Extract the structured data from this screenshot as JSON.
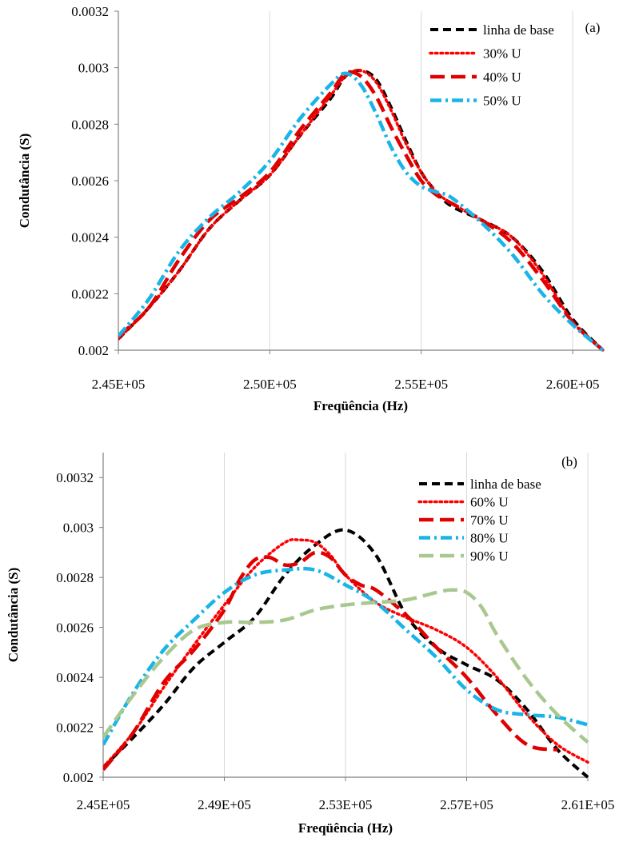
{
  "chart_data": [
    {
      "type": "line",
      "panel_label": "(a)",
      "title": "",
      "xlabel": "Freqüência (Hz)",
      "ylabel": "Condutância (S)",
      "xlim": [
        245000,
        261000
      ],
      "ylim": [
        0.002,
        0.0032
      ],
      "x_ticks": [
        245000,
        250000,
        255000,
        260000
      ],
      "x_tick_labels": [
        "2.45E+05",
        "2.50E+05",
        "2.55E+05",
        "2.60E+05"
      ],
      "y_ticks": [
        0.002,
        0.0022,
        0.0024,
        0.0026,
        0.0028,
        0.003,
        0.0032
      ],
      "y_tick_labels": [
        "0.002",
        "0.0022",
        "0.0024",
        "0.0026",
        "0.0028",
        "0.003",
        "0.0032"
      ],
      "grid": "vertical",
      "legend_position": "top-right",
      "series": [
        {
          "name": "linha de base",
          "color": "#000000",
          "style": "dash",
          "x": [
            245000,
            246000,
            247000,
            248000,
            249000,
            250000,
            251000,
            252000,
            252500,
            253000,
            253500,
            254000,
            254500,
            255000,
            255500,
            256000,
            257000,
            258000,
            259000,
            260000,
            261000
          ],
          "y": [
            0.00204,
            0.00215,
            0.00228,
            0.00243,
            0.00253,
            0.00262,
            0.00276,
            0.00289,
            0.00297,
            0.00299,
            0.00296,
            0.00286,
            0.00274,
            0.00263,
            0.00256,
            0.00251,
            0.00246,
            0.0024,
            0.00228,
            0.00211,
            0.002
          ]
        },
        {
          "name": "30% U",
          "color": "#ff0000",
          "style": "dot",
          "x": [
            245000,
            246000,
            247000,
            248000,
            249000,
            250000,
            251000,
            252000,
            252500,
            253000,
            253500,
            254000,
            254500,
            255000,
            255500,
            256000,
            257000,
            258000,
            259000,
            260000,
            261000
          ],
          "y": [
            0.00204,
            0.00215,
            0.00228,
            0.00243,
            0.00253,
            0.00262,
            0.00276,
            0.0029,
            0.00297,
            0.00299,
            0.00295,
            0.00285,
            0.00273,
            0.00263,
            0.00256,
            0.00252,
            0.00246,
            0.0024,
            0.00227,
            0.0021,
            0.002
          ]
        },
        {
          "name": "40% U",
          "color": "#e00000",
          "style": "longdash",
          "x": [
            245000,
            246000,
            247000,
            248000,
            249000,
            250000,
            251000,
            252000,
            252500,
            253000,
            253500,
            254000,
            254500,
            255000,
            255500,
            256000,
            257000,
            258000,
            259000,
            260000,
            261000
          ],
          "y": [
            0.00205,
            0.00215,
            0.00232,
            0.00246,
            0.00254,
            0.00263,
            0.00278,
            0.00291,
            0.00298,
            0.00297,
            0.0029,
            0.00279,
            0.00269,
            0.0026,
            0.00255,
            0.00252,
            0.00246,
            0.00238,
            0.00225,
            0.0021,
            0.002
          ]
        },
        {
          "name": "50% U",
          "color": "#19b4e8",
          "style": "dashdot",
          "x": [
            245000,
            246000,
            247000,
            248000,
            249000,
            250000,
            251000,
            252000,
            252500,
            253000,
            253500,
            254000,
            254500,
            255000,
            255500,
            256000,
            257000,
            258000,
            259000,
            260000,
            261000
          ],
          "y": [
            0.00205,
            0.00218,
            0.00235,
            0.00247,
            0.00256,
            0.00267,
            0.00282,
            0.00294,
            0.00298,
            0.00294,
            0.00284,
            0.00272,
            0.00263,
            0.00258,
            0.00256,
            0.00254,
            0.00245,
            0.00234,
            0.0022,
            0.00209,
            0.002
          ]
        }
      ]
    },
    {
      "type": "line",
      "panel_label": "(b)",
      "title": "",
      "xlabel": "Freqüência (Hz)",
      "ylabel": "Condutância (S)",
      "xlim": [
        245000,
        261000
      ],
      "ylim": [
        0.002,
        0.0033
      ],
      "x_ticks": [
        245000,
        249000,
        253000,
        257000,
        261000
      ],
      "x_tick_labels": [
        "2.45E+05",
        "2.49E+05",
        "2.53E+05",
        "2.57E+05",
        "2.61E+05"
      ],
      "y_ticks": [
        0.002,
        0.0022,
        0.0024,
        0.0026,
        0.0028,
        0.003,
        0.0032
      ],
      "y_tick_labels": [
        "0.002",
        "0.0022",
        "0.0024",
        "0.0026",
        "0.0028",
        "0.003",
        "0.0032"
      ],
      "grid": "vertical",
      "legend_position": "top-right",
      "series": [
        {
          "name": "linha de base",
          "color": "#000000",
          "style": "dash",
          "x": [
            245000,
            246000,
            247000,
            248000,
            249000,
            250000,
            251000,
            252000,
            253000,
            254000,
            255000,
            256000,
            257000,
            258000,
            259000,
            260000,
            261000
          ],
          "y": [
            0.00204,
            0.00216,
            0.00229,
            0.00244,
            0.00254,
            0.00264,
            0.00281,
            0.00293,
            0.00299,
            0.00289,
            0.00265,
            0.00252,
            0.00245,
            0.00239,
            0.00227,
            0.00211,
            0.002
          ]
        },
        {
          "name": "60% U",
          "color": "#ff0000",
          "style": "dot",
          "x": [
            245000,
            246000,
            247000,
            248000,
            249000,
            250000,
            251000,
            251500,
            252000,
            252500,
            253000,
            254000,
            255000,
            256000,
            257000,
            258000,
            259000,
            260000,
            261000
          ],
          "y": [
            0.00204,
            0.00218,
            0.00236,
            0.00253,
            0.00269,
            0.00284,
            0.00294,
            0.00295,
            0.00294,
            0.00289,
            0.00281,
            0.0027,
            0.00264,
            0.00259,
            0.00252,
            0.0024,
            0.00225,
            0.00213,
            0.00206
          ]
        },
        {
          "name": "70% U",
          "color": "#e00000",
          "style": "longdash",
          "x": [
            245000,
            246000,
            247000,
            248000,
            249000,
            249500,
            250000,
            250500,
            251000,
            251500,
            252000,
            252500,
            253000,
            253500,
            254000,
            255000,
            256000,
            257000,
            258000,
            259000,
            260000
          ],
          "y": [
            0.00203,
            0.00218,
            0.00238,
            0.00251,
            0.00267,
            0.00279,
            0.00287,
            0.00288,
            0.00285,
            0.00286,
            0.0029,
            0.00288,
            0.00281,
            0.00277,
            0.00275,
            0.00265,
            0.00252,
            0.0024,
            0.00225,
            0.00213,
            0.00211
          ]
        },
        {
          "name": "80% U",
          "color": "#19b4e8",
          "style": "dashdot",
          "x": [
            245000,
            246000,
            247000,
            248000,
            249000,
            250000,
            251000,
            252000,
            253000,
            254000,
            255000,
            256000,
            257000,
            258000,
            259000,
            260000,
            261000
          ],
          "y": [
            0.00213,
            0.00234,
            0.00251,
            0.00263,
            0.00274,
            0.00281,
            0.00283,
            0.00283,
            0.00277,
            0.0027,
            0.00259,
            0.00248,
            0.00235,
            0.00227,
            0.00225,
            0.00224,
            0.00221
          ]
        },
        {
          "name": "90% U",
          "color": "#a9c890",
          "style": "longdash",
          "x": [
            245000,
            246000,
            247000,
            248000,
            249000,
            250000,
            251000,
            252000,
            253000,
            254000,
            255000,
            256000,
            256500,
            257000,
            257500,
            258000,
            259000,
            260000,
            261000
          ],
          "y": [
            0.00216,
            0.00233,
            0.00248,
            0.00259,
            0.00262,
            0.00262,
            0.00263,
            0.00267,
            0.00269,
            0.0027,
            0.00271,
            0.00274,
            0.00275,
            0.00274,
            0.00268,
            0.00257,
            0.00239,
            0.00225,
            0.00214
          ]
        }
      ]
    }
  ]
}
